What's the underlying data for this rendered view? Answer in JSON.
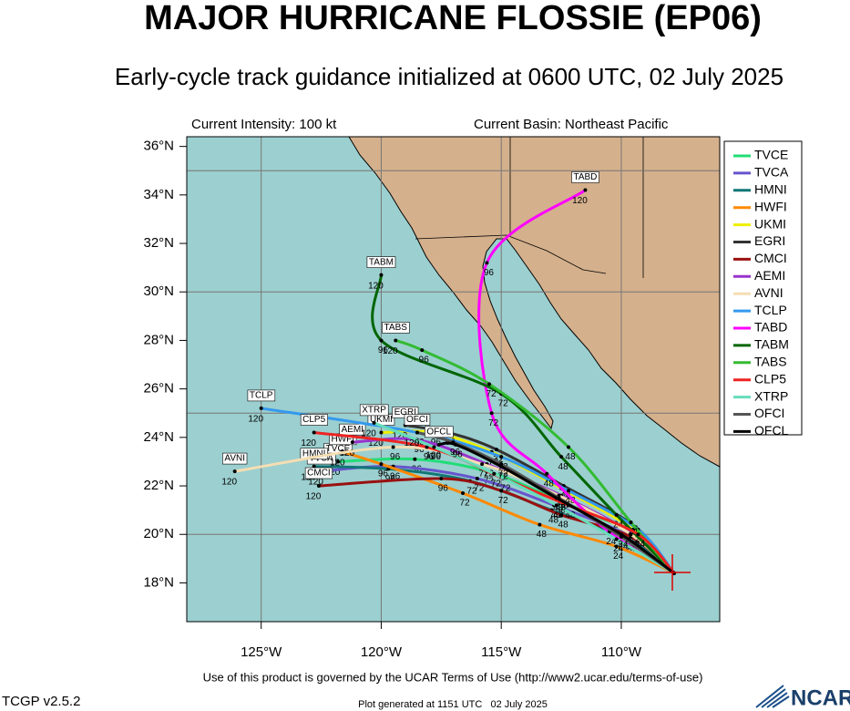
{
  "chart_data": {
    "type": "track",
    "title": "MAJOR HURRICANE FLOSSIE (EP06)",
    "subtitle": "Early-cycle track guidance initialized at 0600 UTC, 02 July 2025",
    "intensity": "Current Intensity: 100 kt",
    "basin": "Current Basin: Northeast Pacific",
    "xlim": [
      -128.1,
      -105.9
    ],
    "ylim": [
      16.4,
      36.4
    ],
    "xticks": [
      {
        "value": -125,
        "label": "125°W"
      },
      {
        "value": -120,
        "label": "120°W"
      },
      {
        "value": -115,
        "label": "115°W"
      },
      {
        "value": -110,
        "label": "110°W"
      }
    ],
    "yticks": [
      {
        "value": 18,
        "label": "18°N"
      },
      {
        "value": 20,
        "label": "20°N"
      },
      {
        "value": 22,
        "label": "22°N"
      },
      {
        "value": 24,
        "label": "24°N"
      },
      {
        "value": 26,
        "label": "26°N"
      },
      {
        "value": 28,
        "label": "28°N"
      },
      {
        "value": 30,
        "label": "30°N"
      },
      {
        "value": 32,
        "label": "32°N"
      },
      {
        "value": 34,
        "label": "34°N"
      },
      {
        "value": 36,
        "label": "36°N"
      }
    ],
    "grid_lon": [
      -125,
      -120,
      -115,
      -110
    ],
    "grid_lat": [
      20,
      25,
      30,
      35
    ],
    "hours": [
      null,
      24,
      48,
      72,
      96,
      120
    ],
    "series": [
      {
        "name": "TVCE",
        "color": "#22dd77",
        "lon": [
          -107.8,
          -109.5,
          -112.6,
          -115.6,
          -118.6,
          -121.8
        ],
        "lat": [
          18.4,
          20.0,
          21.4,
          22.6,
          23.1,
          23.0
        ]
      },
      {
        "name": "TVCA",
        "color": "#6655cc",
        "lon": [
          -107.8,
          -109.6,
          -112.8,
          -116.0,
          -119.5,
          -122.5
        ],
        "lat": [
          18.4,
          19.9,
          21.2,
          22.3,
          22.8,
          22.6
        ]
      },
      {
        "name": "HMNI",
        "color": "#117777",
        "lon": [
          -107.8,
          -109.7,
          -112.9,
          -116.3,
          -119.7,
          -122.8
        ],
        "lat": [
          18.4,
          19.8,
          21.0,
          22.2,
          22.7,
          22.8
        ]
      },
      {
        "name": "HWFI",
        "color": "#ff8800",
        "lon": [
          -107.8,
          -110.2,
          -113.4,
          -116.6,
          -120.0,
          -121.6
        ],
        "lat": [
          18.4,
          19.5,
          20.4,
          21.7,
          22.9,
          23.4
        ]
      },
      {
        "name": "UKMI",
        "color": "#eeee00",
        "lon": [
          -107.8,
          -109.5,
          -112.5,
          -115.4,
          -117.8,
          -120.0
        ],
        "lat": [
          18.4,
          20.2,
          21.9,
          23.4,
          24.2,
          24.2
        ]
      },
      {
        "name": "EGRI",
        "color": "#333333",
        "lon": [
          -107.8,
          -109.4,
          -112.4,
          -115.2,
          -117.2,
          -119.0
        ],
        "lat": [
          18.4,
          20.3,
          22.0,
          23.5,
          24.2,
          24.5
        ]
      },
      {
        "name": "CMCI",
        "color": "#991111",
        "lon": [
          -107.8,
          -109.6,
          -112.5,
          -115.0,
          -117.5,
          -122.6
        ],
        "lat": [
          18.4,
          19.9,
          20.8,
          21.8,
          22.3,
          22.0
        ]
      },
      {
        "name": "AEMI",
        "color": "#9933cc",
        "lon": [
          -107.8,
          -109.5,
          -112.5,
          -115.6,
          -118.5,
          -121.2
        ],
        "lat": [
          18.4,
          20.0,
          21.6,
          22.9,
          23.9,
          23.8
        ]
      },
      {
        "name": "AVNI",
        "color": "#f5deb3",
        "lon": [
          -107.8,
          -109.6,
          -112.6,
          -115.8,
          -119.5,
          -126.1
        ],
        "lat": [
          18.4,
          20.0,
          21.6,
          22.9,
          23.6,
          22.6
        ]
      },
      {
        "name": "TCLP",
        "color": "#3399ee",
        "lon": [
          -107.8,
          -109.3,
          -112.2,
          -115.0,
          -118.5,
          -125.0
        ],
        "lat": [
          18.4,
          20.2,
          21.8,
          23.2,
          24.2,
          25.2
        ]
      },
      {
        "name": "TABD",
        "color": "#ff00ff",
        "lon": [
          -107.8,
          -110.5,
          -113.1,
          -115.4,
          -115.6,
          -111.5
        ],
        "lat": [
          18.4,
          20.1,
          22.5,
          25.0,
          31.2,
          34.2
        ]
      },
      {
        "name": "TABM",
        "color": "#006600",
        "lon": [
          -107.8,
          -110.2,
          -112.5,
          -115.0,
          -120.0,
          -120.0
        ],
        "lat": [
          18.4,
          20.8,
          23.2,
          25.8,
          28.0,
          30.7
        ]
      },
      {
        "name": "TABS",
        "color": "#33bb33",
        "lon": [
          -107.8,
          -109.6,
          -112.2,
          -115.5,
          -118.3,
          -119.4
        ],
        "lat": [
          18.4,
          20.5,
          23.6,
          26.2,
          27.6,
          28.0
        ]
      },
      {
        "name": "CLP5",
        "color": "#ee2222",
        "lon": [
          -107.8,
          -109.3,
          -112.2,
          -114.9,
          -118.1,
          -122.8
        ],
        "lat": [
          18.4,
          20.0,
          21.2,
          22.3,
          23.6,
          24.2
        ]
      },
      {
        "name": "XTRP",
        "color": "#66ddbb",
        "lon": [
          -107.8,
          -110.2,
          -112.7,
          -115.3,
          -117.8,
          -120.3
        ],
        "lat": [
          18.4,
          19.8,
          21.2,
          22.5,
          23.6,
          24.6
        ]
      },
      {
        "name": "OFCI",
        "color": "#555555",
        "lon": [
          -107.8,
          -110.0,
          -112.6,
          -115.0,
          -117.0,
          -118.5
        ],
        "lat": [
          18.4,
          19.9,
          21.5,
          22.9,
          23.8,
          24.2
        ]
      },
      {
        "name": "OFCL",
        "color": "#000000",
        "lon": [
          -107.8,
          -110.0,
          -112.7,
          -115.0,
          -116.9,
          -117.6
        ],
        "lat": [
          18.4,
          20.0,
          21.5,
          22.8,
          23.7,
          23.7
        ]
      }
    ]
  },
  "footer": {
    "terms": "Use of this product is governed by the UCAR Terms of Use (http://www2.ucar.edu/terms-of-use)",
    "version": "TCGP v2.5.2",
    "generated": "Plot generated at 1151 UTC   02 July 2025",
    "logo": "NCAR"
  }
}
